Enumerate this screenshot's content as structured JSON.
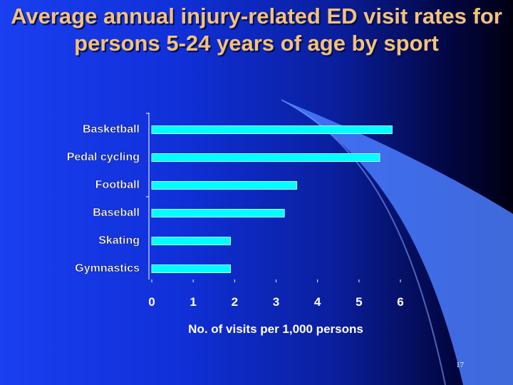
{
  "slide": {
    "title": "Average annual injury-related ED visit rates for persons 5-24 years of age by sport",
    "page_number": "17"
  },
  "colors": {
    "bar_fill": "#00ffff",
    "bar_stroke": "#aaffff",
    "title_text": "#f3c27a",
    "label_text": "#ffffff",
    "axis_line": "#ffffff",
    "swoosh": "#4a7cff"
  },
  "chart_data": {
    "type": "bar",
    "orientation": "horizontal",
    "title": "Average annual injury-related ED visit rates for persons 5-24 years of age by sport",
    "categories": [
      "Basketball",
      "Pedal cycling",
      "Football",
      "Baseball",
      "Skating",
      "Gymnastics"
    ],
    "values": [
      5.8,
      5.5,
      3.5,
      3.2,
      1.9,
      1.9
    ],
    "xlabel": "No. of visits per 1,000 persons",
    "ylabel": "",
    "xlim": [
      0,
      6
    ],
    "xticks": [
      "0",
      "1",
      "2",
      "3",
      "4",
      "5",
      "6"
    ],
    "grid": false,
    "legend": "none"
  }
}
